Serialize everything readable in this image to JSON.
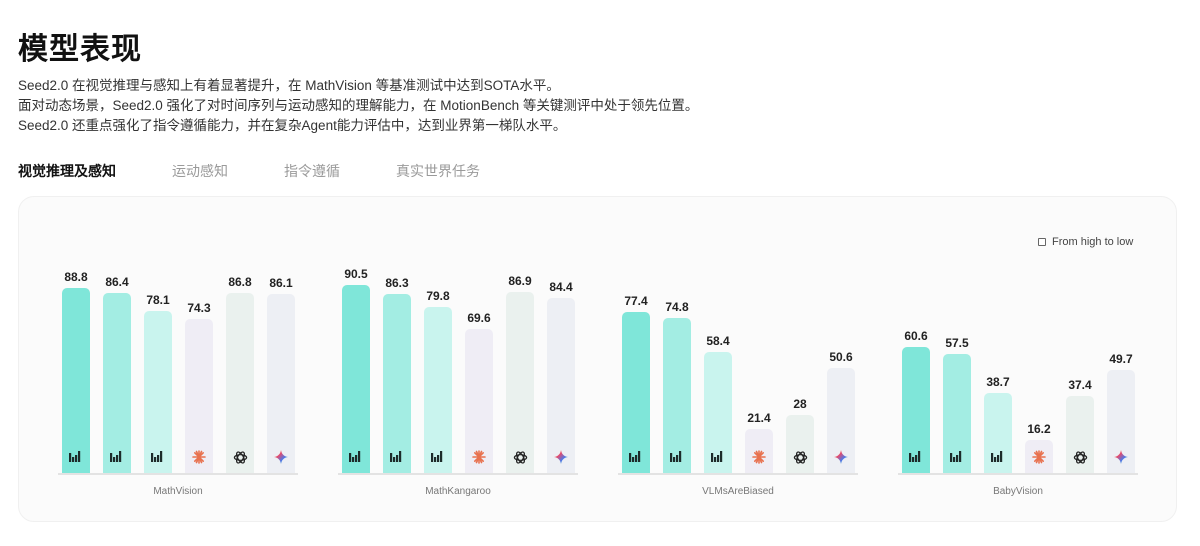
{
  "page": {
    "title": "模型表现",
    "description": [
      "Seed2.0 在视觉推理与感知上有着显著提升，在 MathVision 等基准测试中达到SOTA水平。",
      "面对动态场景，Seed2.0 强化了对时间序列与运动感知的理解能力，在 MotionBench 等关键测评中处于领先位置。",
      "Seed2.0 还重点强化了指令遵循能力，并在复杂Agent能力评估中，达到业界第一梯队水平。"
    ]
  },
  "tabs": [
    {
      "label": "视觉推理及感知",
      "active": true
    },
    {
      "label": "运动感知",
      "active": false
    },
    {
      "label": "指令遵循",
      "active": false
    },
    {
      "label": "真实世界任务",
      "active": false
    }
  ],
  "sort_toggle": {
    "label": "From high to low",
    "checked": false
  },
  "models": [
    {
      "icon": "seed-logo-icon",
      "color": "#7fe6d9",
      "label_color": "#1a1a1a"
    },
    {
      "icon": "seed-logo-icon",
      "color": "#a3ede3",
      "label_color": "#1a1a1a"
    },
    {
      "icon": "seed-logo-icon",
      "color": "#c9f4ee",
      "label_color": "#1a1a1a"
    },
    {
      "icon": "claude-logo-icon",
      "color": "#efedf5",
      "label_color": "#e8714f"
    },
    {
      "icon": "openai-logo-icon",
      "color": "#eaf1ee",
      "label_color": "#222222"
    },
    {
      "icon": "gemini-logo-icon",
      "color": "#edeff4",
      "label_color": "#4a7bea"
    }
  ],
  "chart_data": {
    "type": "bar",
    "title": "视觉推理及感知",
    "categories": [
      "MathVision",
      "MathKangaroo",
      "VLMsAreBiased",
      "BabyVision"
    ],
    "series": [
      {
        "name": "Seed (bar 1)",
        "values": [
          88.8,
          90.5,
          77.4,
          60.6
        ]
      },
      {
        "name": "Seed (bar 2)",
        "values": [
          86.4,
          86.3,
          74.8,
          57.5
        ]
      },
      {
        "name": "Seed (bar 3)",
        "values": [
          78.1,
          79.8,
          58.4,
          38.7
        ]
      },
      {
        "name": "Claude",
        "values": [
          74.3,
          69.6,
          21.4,
          16.2
        ]
      },
      {
        "name": "OpenAI GPT",
        "values": [
          86.8,
          86.9,
          28,
          37.4
        ]
      },
      {
        "name": "Gemini",
        "values": [
          86.1,
          84.4,
          50.6,
          49.7
        ]
      }
    ],
    "xlabel": "",
    "ylabel": "",
    "grid": false,
    "legend": "icons-in-bars",
    "ylim": [
      0,
      100
    ]
  },
  "groups_display": [
    {
      "label": "MathVision",
      "values": [
        "88.8",
        "86.4",
        "78.1",
        "74.3",
        "86.8",
        "86.1"
      ]
    },
    {
      "label": "MathKangaroo",
      "values": [
        "90.5",
        "86.3",
        "79.8",
        "69.6",
        "86.9",
        "84.4"
      ]
    },
    {
      "label": "VLMsAreBiased",
      "values": [
        "77.4",
        "74.8",
        "58.4",
        "21.4",
        "28",
        "50.6"
      ]
    },
    {
      "label": "BabyVision",
      "values": [
        "60.6",
        "57.5",
        "38.7",
        "16.2",
        "37.4",
        "49.7"
      ]
    }
  ]
}
